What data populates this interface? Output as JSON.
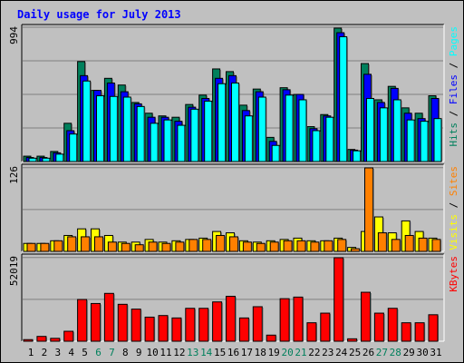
{
  "chart_data": {
    "type": "bar",
    "title": "Daily usage for July 2013",
    "days": [
      "1",
      "2",
      "3",
      "4",
      "5",
      "6",
      "7",
      "8",
      "9",
      "10",
      "11",
      "12",
      "13",
      "14",
      "15",
      "16",
      "17",
      "18",
      "19",
      "20",
      "21",
      "22",
      "23",
      "24",
      "25",
      "26",
      "27",
      "28",
      "29",
      "30",
      "31"
    ],
    "weekend_days": [
      "6",
      "7",
      "13",
      "14",
      "20",
      "21",
      "27",
      "28"
    ],
    "panels": [
      {
        "id": "hits",
        "max_label": "994",
        "max": 994,
        "series": [
          {
            "name": "Hits",
            "color": "#00805c",
            "values": [
              40,
              40,
              75,
              285,
              745,
              530,
              620,
              570,
              440,
              360,
              340,
              330,
              425,
              495,
              690,
              670,
              420,
              540,
              180,
              550,
              500,
              260,
              350,
              994,
              90,
              730,
              460,
              560,
              400,
              360,
              490
            ]
          },
          {
            "name": "Files",
            "color": "#0000ff",
            "values": [
              30,
              30,
              65,
              230,
              640,
              530,
              585,
              520,
              430,
              330,
              330,
              300,
              405,
              470,
              620,
              640,
              380,
              520,
              150,
              535,
              500,
              245,
              340,
              960,
              85,
              650,
              440,
              545,
              360,
              320,
              470
            ]
          },
          {
            "name": "Pages",
            "color": "#00ffff",
            "values": [
              25,
              25,
              55,
              205,
              600,
              490,
              485,
              480,
              410,
              285,
              310,
              270,
              390,
              450,
              580,
              585,
              340,
              480,
              120,
              495,
              460,
              230,
              330,
              930,
              80,
              470,
              400,
              460,
              310,
              300,
              320
            ]
          }
        ],
        "legend": [
          {
            "text": "Hits",
            "color": "#00805c"
          },
          {
            "text": " / ",
            "color": "#000000"
          },
          {
            "text": "Files",
            "color": "#0000ff"
          },
          {
            "text": " / ",
            "color": "#000000"
          },
          {
            "text": "Pages",
            "color": "#00ffff"
          }
        ]
      },
      {
        "id": "visits",
        "max_label": "126",
        "max": 126,
        "series": [
          {
            "name": "Visits",
            "color": "#ffff00",
            "values": [
              12,
              12,
              16,
              24,
              34,
              34,
              24,
              14,
              14,
              18,
              14,
              16,
              18,
              20,
              30,
              28,
              16,
              14,
              16,
              18,
              20,
              16,
              16,
              20,
              6,
              30,
              52,
              28,
              46,
              30,
              20
            ]
          },
          {
            "name": "Sites",
            "color": "#ff8000",
            "values": [
              12,
              12,
              16,
              22,
              22,
              22,
              14,
              12,
              10,
              14,
              12,
              14,
              18,
              18,
              24,
              22,
              14,
              12,
              14,
              16,
              16,
              14,
              16,
              18,
              4,
              126,
              28,
              18,
              24,
              20,
              18
            ]
          }
        ],
        "legend": [
          {
            "text": "Visits",
            "color": "#ffff00"
          },
          {
            "text": " / ",
            "color": "#000000"
          },
          {
            "text": "Sites",
            "color": "#ff8000"
          }
        ]
      },
      {
        "id": "kbytes",
        "max_label": "52019",
        "max": 52019,
        "series": [
          {
            "name": "KBytes",
            "color": "#ff0000",
            "values": [
              1000,
              3000,
              1800,
              6200,
              26000,
              23500,
              29800,
              23000,
              20000,
              15000,
              16000,
              14500,
              20500,
              20500,
              24500,
              28000,
              14500,
              21500,
              3800,
              26500,
              27500,
              11500,
              17500,
              52019,
              1500,
              30500,
              17500,
              20500,
              11500,
              11500,
              16500
            ]
          }
        ],
        "legend": [
          {
            "text": "KBytes",
            "color": "#ff0000"
          }
        ]
      }
    ]
  }
}
